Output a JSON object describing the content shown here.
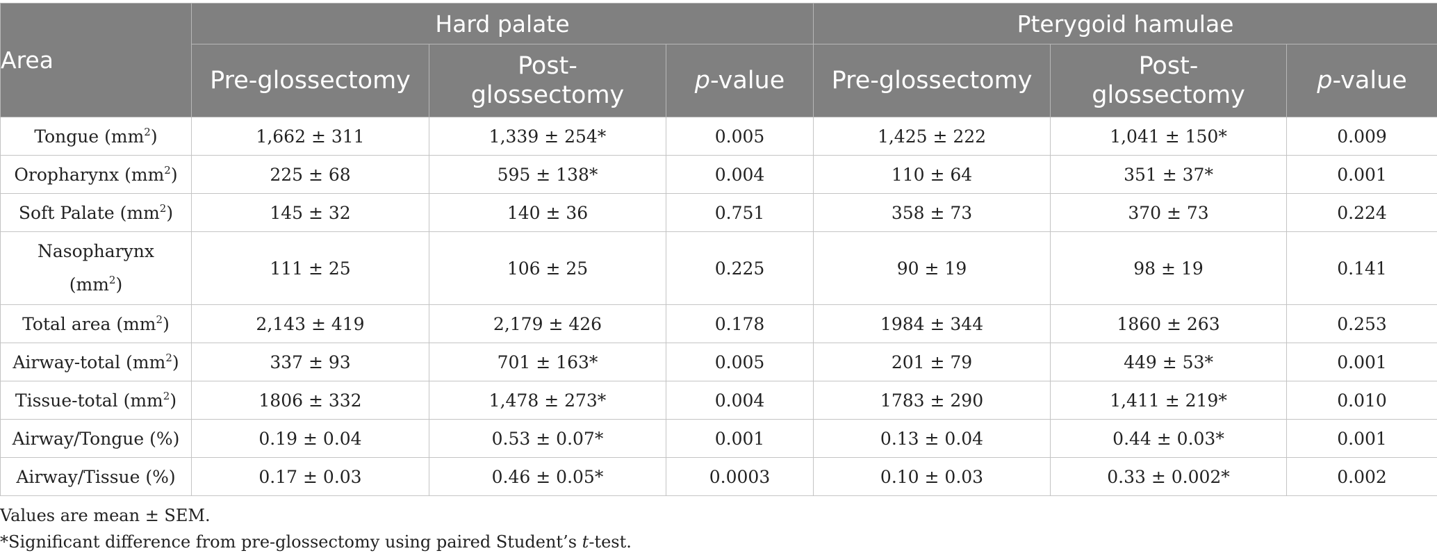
{
  "header": {
    "area": "Area",
    "groups": [
      "Hard palate",
      "Pterygoid hamulae"
    ],
    "pre": "Pre-glossectomy",
    "post_line1": "Post-",
    "post_line2": "glossectomy",
    "p_italic": "p",
    "p_rest": "-value"
  },
  "rows": [
    {
      "label": "Tongue (mm",
      "sup": "2",
      "after": ")",
      "hp_pre": "1,662 ± 311",
      "hp_post": "1,339 ± 254*",
      "hp_p": "0.005",
      "ph_pre": "1,425 ± 222",
      "ph_post": "1,041 ± 150*",
      "ph_p": "0.009"
    },
    {
      "label": "Oropharynx (mm",
      "sup": "2",
      "after": ")",
      "hp_pre": "225 ± 68",
      "hp_post": "595 ± 138*",
      "hp_p": "0.004",
      "ph_pre": "110 ± 64",
      "ph_post": "351 ± 37*",
      "ph_p": "0.001"
    },
    {
      "label": "Soft Palate (mm",
      "sup": "2",
      "after": ")",
      "hp_pre": "145 ± 32",
      "hp_post": "140 ± 36",
      "hp_p": "0.751",
      "ph_pre": "358 ± 73",
      "ph_post": "370 ± 73",
      "ph_p": "0.224"
    },
    {
      "label": "Nasopharynx",
      "label2": "(mm",
      "sup": "2",
      "after": ")",
      "hp_pre": "111 ± 25",
      "hp_post": "106 ± 25",
      "hp_p": "0.225",
      "ph_pre": "90 ± 19",
      "ph_post": "98 ± 19",
      "ph_p": "0.141"
    },
    {
      "label": "Total area (mm",
      "sup": "2",
      "after": ")",
      "hp_pre": "2,143 ± 419",
      "hp_post": "2,179 ± 426",
      "hp_p": "0.178",
      "ph_pre": "1984 ± 344",
      "ph_post": "1860 ± 263",
      "ph_p": "0.253"
    },
    {
      "label": "Airway-total (mm",
      "sup": "2",
      "after": ")",
      "hp_pre": "337 ± 93",
      "hp_post": "701 ± 163*",
      "hp_p": "0.005",
      "ph_pre": "201 ± 79",
      "ph_post": "449 ± 53*",
      "ph_p": "0.001"
    },
    {
      "label": "Tissue-total (mm",
      "sup": "2",
      "after": ")",
      "hp_pre": "1806 ± 332",
      "hp_post": "1,478 ± 273*",
      "hp_p": "0.004",
      "ph_pre": "1783 ± 290",
      "ph_post": "1,411 ± 219*",
      "ph_p": "0.010"
    },
    {
      "label": "Airway/Tongue (%)",
      "hp_pre": "0.19 ± 0.04",
      "hp_post": "0.53 ± 0.07*",
      "hp_p": "0.001",
      "ph_pre": "0.13 ± 0.04",
      "ph_post": "0.44 ± 0.03*",
      "ph_p": "0.001"
    },
    {
      "label": "Airway/Tissue (%)",
      "hp_pre": "0.17 ± 0.03",
      "hp_post": "0.46 ± 0.05*",
      "hp_p": "0.0003",
      "ph_pre": "0.10 ± 0.03",
      "ph_post": "0.33 ± 0.002*",
      "ph_p": "0.002"
    }
  ],
  "footnotes": {
    "note1": "Values are mean ± SEM.",
    "note2_before": "*Significant difference from pre-glossectomy using paired Student’s ",
    "note2_italic": "t",
    "note2_after": "-test."
  }
}
